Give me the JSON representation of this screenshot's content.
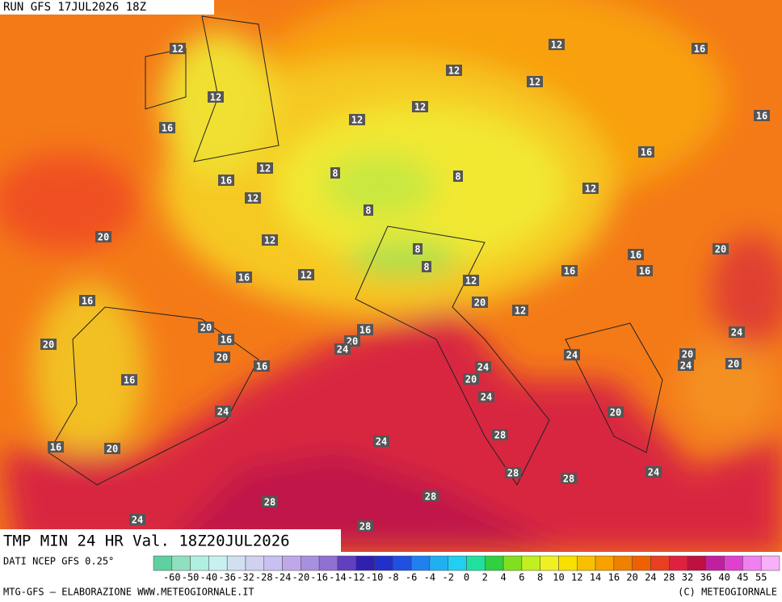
{
  "header": {
    "run": "RUN GFS 17JUL2026 18Z"
  },
  "map": {
    "contour_labels": [
      12,
      12,
      16,
      12,
      12,
      12,
      12,
      12,
      16,
      16,
      16,
      12,
      8,
      16,
      12,
      8,
      12,
      8,
      20,
      12,
      8,
      8,
      12,
      16,
      16,
      16,
      16,
      20,
      12,
      20,
      12,
      16,
      20,
      16,
      16,
      20,
      24,
      24,
      20,
      20,
      16,
      24,
      20,
      24,
      20,
      24,
      20,
      16,
      24,
      24,
      20,
      28,
      24,
      16,
      20,
      28,
      28,
      24,
      28,
      28,
      24,
      28
    ]
  },
  "footer": {
    "title": "TMP MIN 24 HR Val. 18Z20JUL2026",
    "source": "DATI NCEP GFS 0.25°",
    "credit": "MTG-GFS — ELABORAZIONE WWW.METEOGIORNALE.IT",
    "copyright": "(C) METEOGIORNALE"
  },
  "colorbar": {
    "labels": [
      -60,
      -50,
      -40,
      -36,
      -32,
      -28,
      -24,
      -20,
      -16,
      -14,
      -12,
      -10,
      -8,
      -6,
      -4,
      -2,
      0,
      2,
      4,
      6,
      8,
      10,
      12,
      14,
      16,
      20,
      24,
      28,
      32,
      36,
      40,
      45,
      55
    ],
    "colors": [
      "#60d0a0",
      "#90e0c0",
      "#b0f0e0",
      "#c8f0f0",
      "#d0e0f0",
      "#d0d0f0",
      "#c8c0f0",
      "#c0a8e8",
      "#a890e0",
      "#9070d0",
      "#6040c0",
      "#3020b0",
      "#2030c8",
      "#2050e0",
      "#2080f0",
      "#20b0f0",
      "#20d0f0",
      "#20e0a0",
      "#30d040",
      "#80e020",
      "#c0f020",
      "#f0f020",
      "#f8e000",
      "#f8c000",
      "#f8a000",
      "#f08000",
      "#f06000",
      "#e84020",
      "#e02040",
      "#c01040",
      "#c020a0",
      "#e040d0",
      "#f080f0",
      "#f8b0f8"
    ]
  }
}
